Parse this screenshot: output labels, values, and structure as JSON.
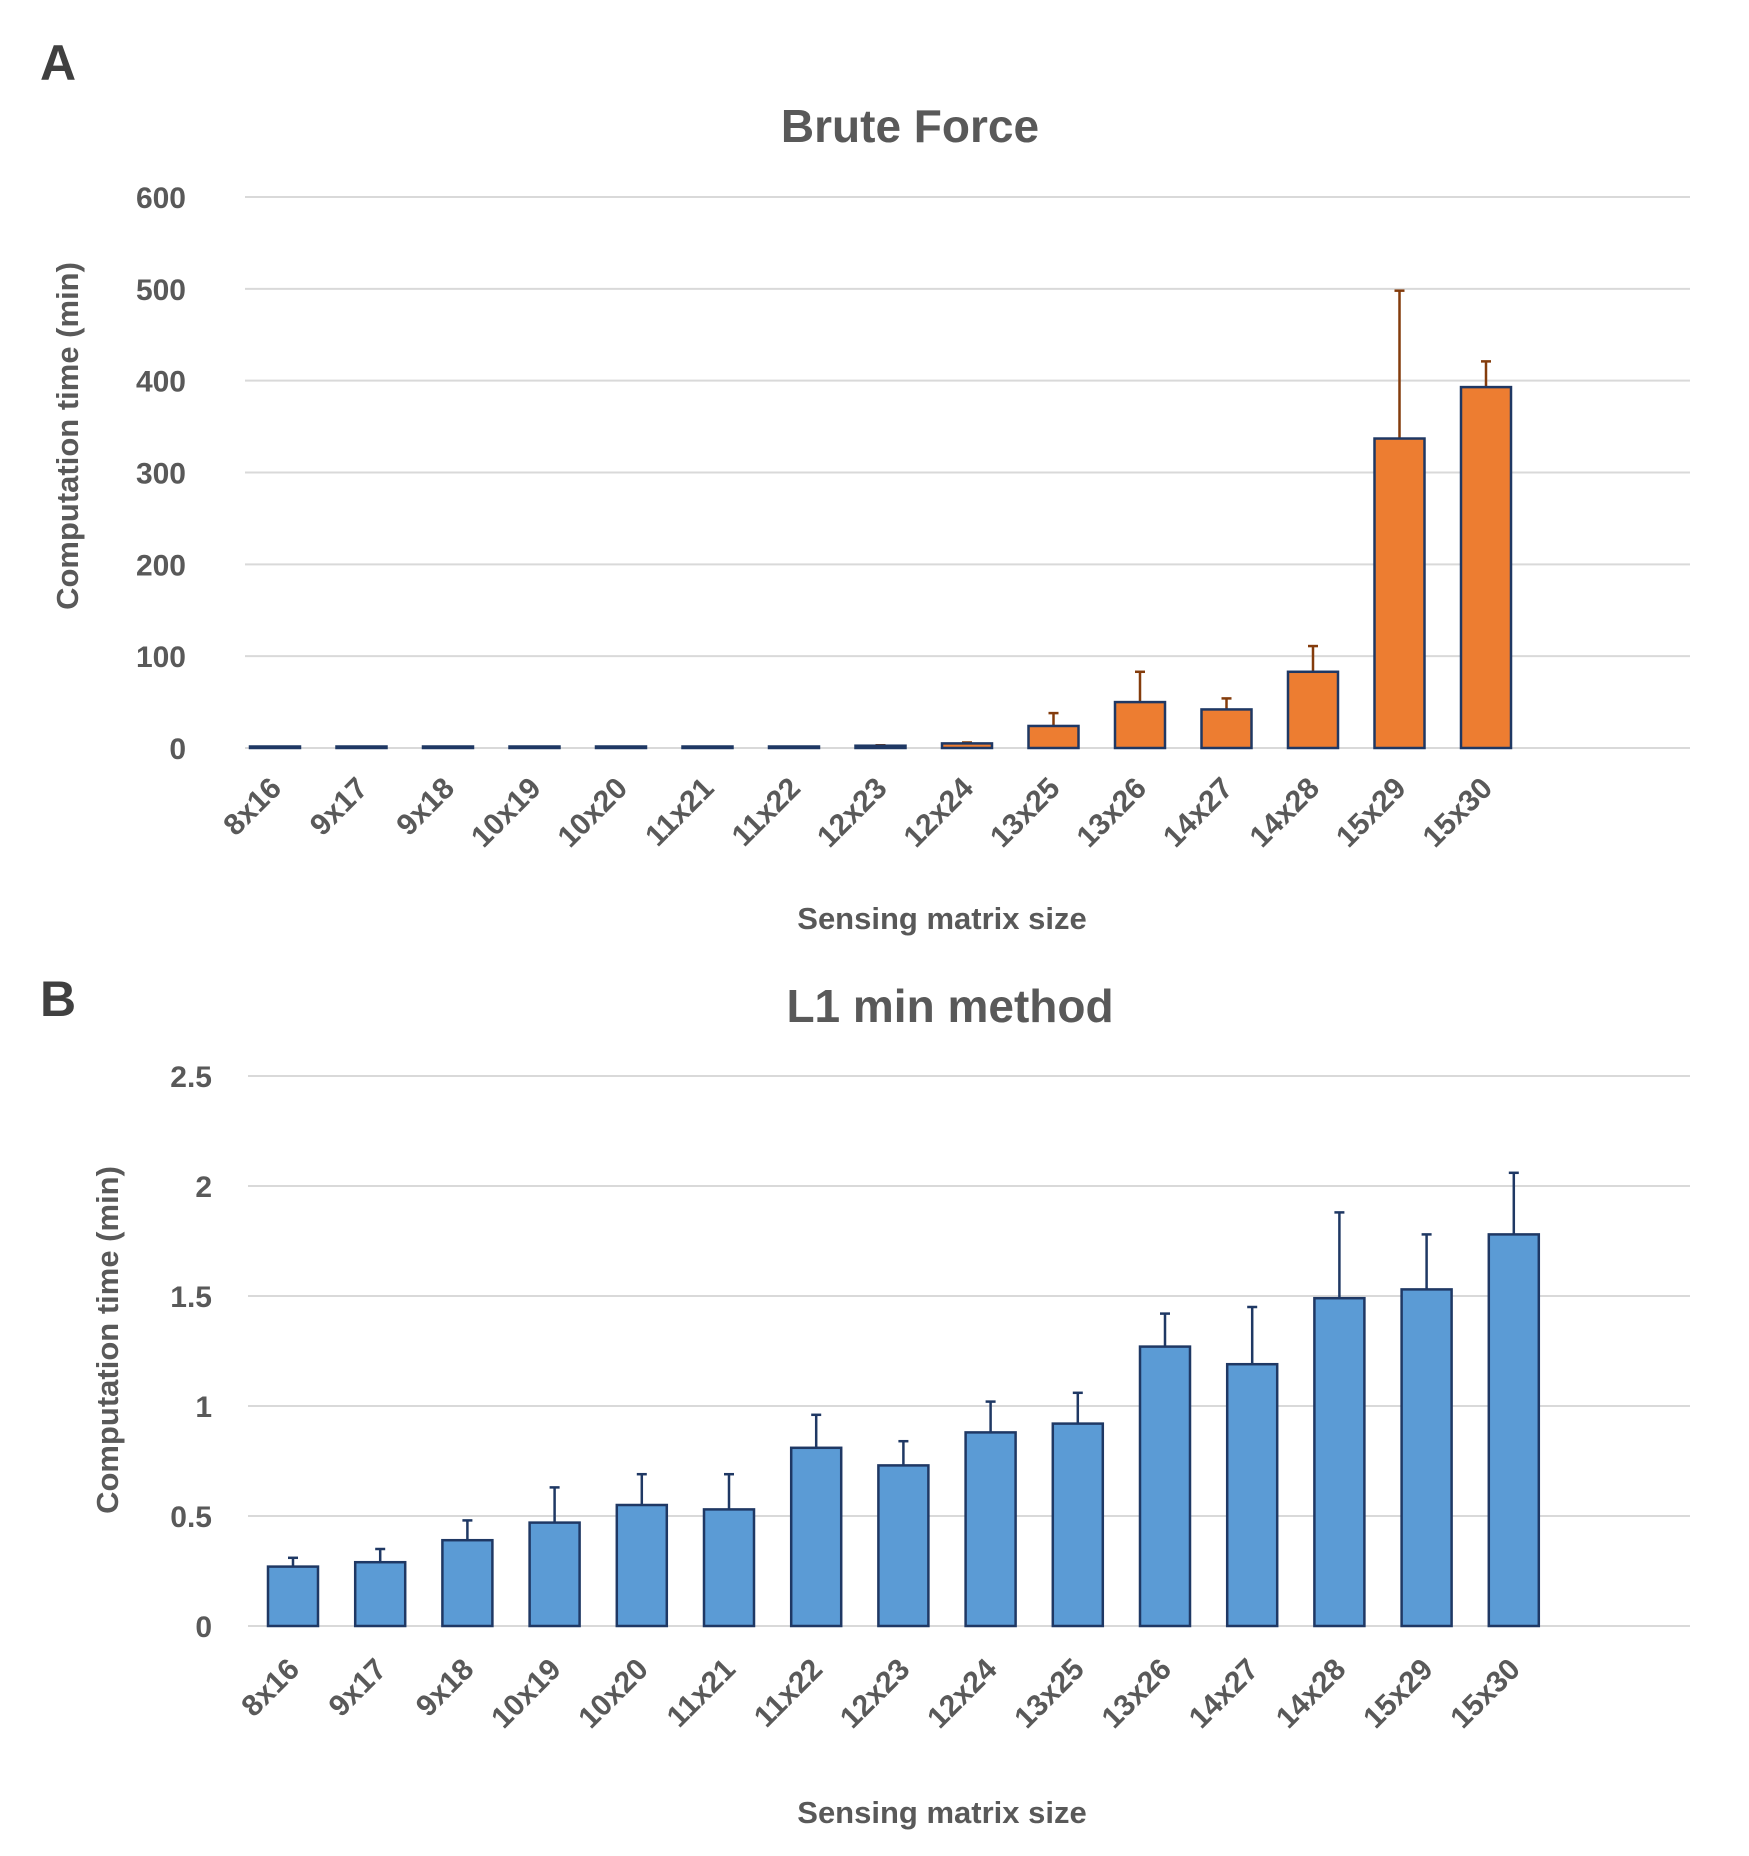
{
  "figure": {
    "panels": [
      "A",
      "B"
    ]
  },
  "colors": {
    "grid": "#d9d9d9",
    "text": "#595959",
    "brute_fill": "#ed7d31",
    "brute_edge": "#1f3864",
    "brute_err": "#843c0c",
    "l1_fill": "#5b9bd5",
    "l1_edge": "#1f3864",
    "l1_err": "#1f3864"
  },
  "chart_data": [
    {
      "panel": "A",
      "type": "bar",
      "title": "Brute Force",
      "xlabel": "Sensing matrix size",
      "ylabel": "Computation time (min)",
      "ylim": [
        0,
        600
      ],
      "yticks": [
        "0",
        "100",
        "200",
        "300",
        "400",
        "500",
        "600"
      ],
      "ytick_values": [
        0,
        100,
        200,
        300,
        400,
        500,
        600
      ],
      "grid": true,
      "categories": [
        "8x16",
        "9x17",
        "9x18",
        "10x19",
        "10x20",
        "11x21",
        "11x22",
        "12x23",
        "12x24",
        "13x25",
        "13x26",
        "14x27",
        "14x28",
        "15x29",
        "15x30"
      ],
      "values": [
        0.2,
        0.3,
        0.4,
        0.5,
        0.6,
        0.8,
        1.0,
        2.5,
        5,
        24,
        50,
        42,
        83,
        337,
        393
      ],
      "errors": [
        0,
        0,
        0,
        0,
        0,
        0,
        0,
        0.5,
        1,
        14,
        33,
        12,
        28,
        161,
        28
      ]
    },
    {
      "panel": "B",
      "type": "bar",
      "title": "L1 min method",
      "xlabel": "Sensing matrix size",
      "ylabel": "Computation time (min)",
      "ylim": [
        0,
        2.5
      ],
      "yticks": [
        "0",
        "0.5",
        "1",
        "1.5",
        "2",
        "2.5"
      ],
      "ytick_values": [
        0,
        0.5,
        1,
        1.5,
        2,
        2.5
      ],
      "grid": true,
      "categories": [
        "8x16",
        "9x17",
        "9x18",
        "10x19",
        "10x20",
        "11x21",
        "11x22",
        "12x23",
        "12x24",
        "13x25",
        "13x26",
        "14x27",
        "14x28",
        "15x29",
        "15x30"
      ],
      "values": [
        0.27,
        0.29,
        0.39,
        0.47,
        0.55,
        0.53,
        0.81,
        0.73,
        0.88,
        0.92,
        1.27,
        1.19,
        1.49,
        1.53,
        1.78
      ],
      "errors": [
        0.04,
        0.06,
        0.09,
        0.16,
        0.14,
        0.16,
        0.15,
        0.11,
        0.14,
        0.14,
        0.15,
        0.26,
        0.39,
        0.25,
        0.28
      ]
    }
  ]
}
